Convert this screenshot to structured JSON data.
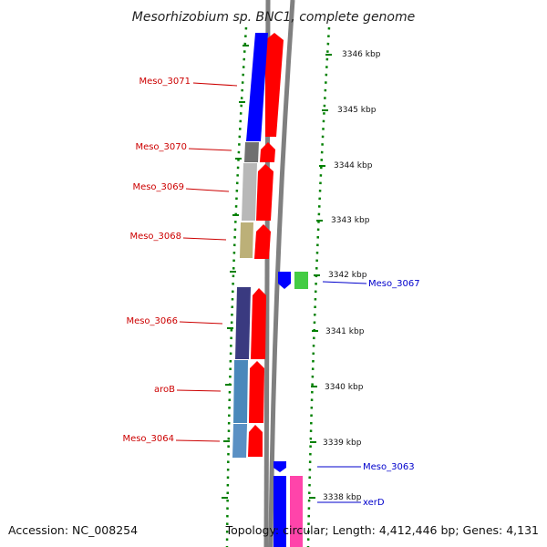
{
  "title": "Mesorhizobium sp. BNC1, complete genome",
  "footer": {
    "accession": "Accession: NC_008254",
    "topology": "Topology: circular; Length: 4,412,446 bp; Genes: 4,131"
  },
  "colors": {
    "cds_red": "#ff0000",
    "cds_blue": "#0000ff",
    "label_red": "#cc0000",
    "label_blue": "#0000cc",
    "tick_green": "#008000",
    "backbone": "#808080"
  },
  "ruler": [
    "3346 kbp",
    "3345 kbp",
    "3344 kbp",
    "3343 kbp",
    "3342 kbp",
    "3341 kbp",
    "3340 kbp",
    "3339 kbp",
    "3338 kbp"
  ],
  "genes": [
    {
      "name": "Meso_3071",
      "strand": "reverse"
    },
    {
      "name": "Meso_3070",
      "strand": "reverse"
    },
    {
      "name": "Meso_3069",
      "strand": "reverse"
    },
    {
      "name": "Meso_3068",
      "strand": "reverse"
    },
    {
      "name": "Meso_3067",
      "strand": "forward"
    },
    {
      "name": "Meso_3066",
      "strand": "reverse"
    },
    {
      "name": "aroB",
      "strand": "reverse"
    },
    {
      "name": "Meso_3064",
      "strand": "reverse"
    },
    {
      "name": "Meso_3063",
      "strand": "forward"
    },
    {
      "name": "xerD",
      "strand": "forward"
    }
  ]
}
